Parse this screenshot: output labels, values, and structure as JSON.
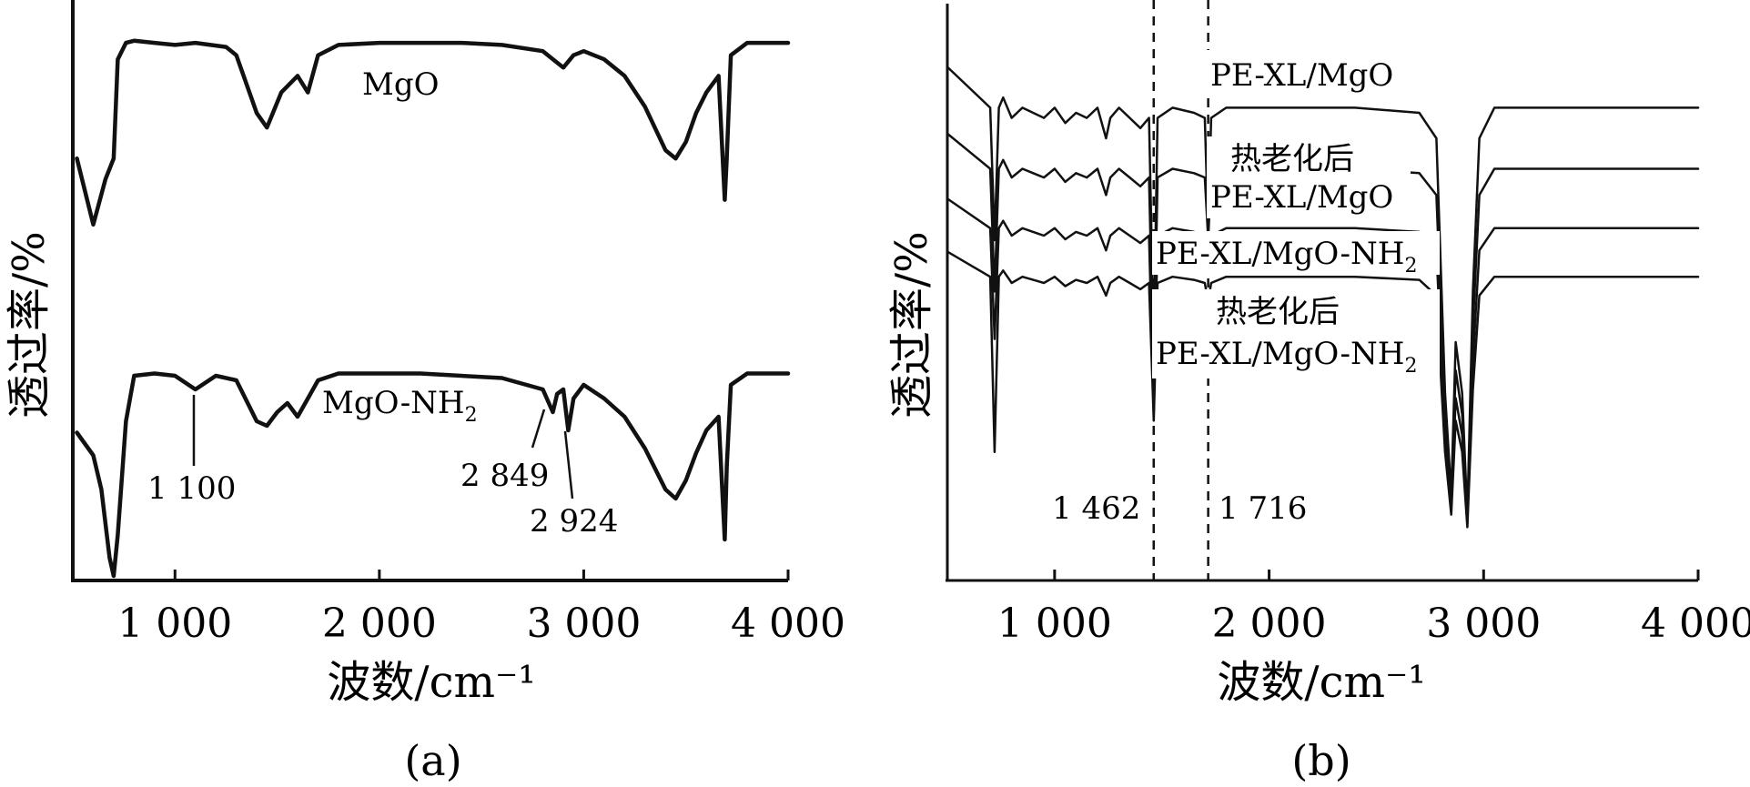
{
  "chart_data": [
    {
      "panel": "(a)",
      "type": "line",
      "xlabel": "波数/cm⁻¹",
      "ylabel": "透过率/%",
      "xlim": [
        500,
        4000
      ],
      "xticks": [
        1000,
        2000,
        3000,
        4000
      ],
      "xtick_labels": [
        "1 000",
        "2 000",
        "3 000",
        "4 000"
      ],
      "y_scale": "arbitrary (offset transmittance)",
      "grid": false,
      "series": [
        {
          "name": "MgO",
          "label_sub": "",
          "x": [
            520,
            600,
            660,
            700,
            720,
            760,
            800,
            900,
            1000,
            1100,
            1250,
            1300,
            1400,
            1450,
            1520,
            1600,
            1650,
            1700,
            1800,
            2000,
            2200,
            2400,
            2600,
            2800,
            2850,
            2900,
            2950,
            3000,
            3100,
            3200,
            3300,
            3400,
            3450,
            3500,
            3550,
            3600,
            3660,
            3690,
            3700,
            3720,
            3800,
            3900,
            4000
          ],
          "y": [
            40,
            8,
            30,
            40,
            88,
            96,
            97,
            96,
            95,
            96,
            94,
            90,
            62,
            55,
            72,
            80,
            72,
            90,
            95,
            96,
            96,
            96,
            95,
            92,
            88,
            84,
            90,
            92,
            88,
            80,
            65,
            44,
            40,
            48,
            62,
            72,
            80,
            20,
            40,
            90,
            96,
            96,
            96
          ]
        },
        {
          "name": "MgO-NH",
          "label_sub": "2",
          "x": [
            520,
            600,
            640,
            680,
            700,
            720,
            760,
            800,
            900,
            1000,
            1100,
            1200,
            1300,
            1400,
            1450,
            1500,
            1550,
            1600,
            1650,
            1700,
            1800,
            2000,
            2200,
            2400,
            2600,
            2800,
            2849,
            2870,
            2900,
            2924,
            2950,
            3000,
            3100,
            3200,
            3300,
            3400,
            3450,
            3500,
            3550,
            3600,
            3660,
            3690,
            3700,
            3720,
            3800,
            3900,
            4000
          ],
          "y": [
            65,
            55,
            40,
            10,
            2,
            20,
            70,
            90,
            91,
            90,
            84,
            90,
            88,
            70,
            68,
            74,
            78,
            72,
            80,
            88,
            91,
            91,
            91,
            90,
            89,
            84,
            74,
            82,
            84,
            66,
            80,
            86,
            80,
            72,
            58,
            40,
            36,
            44,
            56,
            66,
            72,
            18,
            50,
            86,
            91,
            91,
            91
          ]
        }
      ],
      "annotations": [
        {
          "text": "1 100",
          "x": 1100
        },
        {
          "text": "2 849",
          "x": 2849
        },
        {
          "text": "2 924",
          "x": 2924
        }
      ]
    },
    {
      "panel": "(b)",
      "type": "line",
      "xlabel": "波数/cm⁻¹",
      "ylabel": "透过率/%",
      "xlim": [
        500,
        4000
      ],
      "xticks": [
        1000,
        2000,
        3000,
        4000
      ],
      "xtick_labels": [
        "1 000",
        "2 000",
        "3 000",
        "4 000"
      ],
      "y_scale": "arbitrary (offset transmittance)",
      "grid": false,
      "reference_lines": [
        {
          "x": 1462,
          "label": "1 462",
          "style": "dashed"
        },
        {
          "x": 1716,
          "label": "1 716",
          "style": "dashed"
        }
      ],
      "series": [
        {
          "name_line1": "",
          "name_line2": "PE-XL/MgO",
          "label_sub": "",
          "x": [
            500,
            600,
            700,
            720,
            740,
            760,
            800,
            850,
            900,
            950,
            1000,
            1050,
            1100,
            1150,
            1200,
            1240,
            1260,
            1300,
            1350,
            1400,
            1440,
            1462,
            1480,
            1550,
            1650,
            1700,
            1716,
            1730,
            1800,
            2000,
            2400,
            2700,
            2780,
            2820,
            2849,
            2870,
            2900,
            2924,
            2950,
            2980,
            3050,
            3200,
            3500,
            4000
          ],
          "y": [
            94,
            90,
            86,
            60,
            86,
            88,
            84,
            86,
            85,
            84,
            86,
            83,
            85,
            84,
            86,
            80,
            84,
            86,
            84,
            82,
            84,
            40,
            84,
            86,
            85,
            84,
            62,
            84,
            86,
            86,
            86,
            85,
            80,
            30,
            10,
            40,
            30,
            6,
            50,
            80,
            86,
            86,
            86,
            86
          ]
        },
        {
          "name_line1": "热老化后",
          "name_line2": "PE-XL/MgO",
          "label_sub": "",
          "x": [
            500,
            600,
            700,
            720,
            740,
            760,
            800,
            850,
            900,
            950,
            1000,
            1050,
            1100,
            1150,
            1200,
            1240,
            1260,
            1300,
            1350,
            1400,
            1440,
            1462,
            1480,
            1550,
            1650,
            1700,
            1716,
            1730,
            1800,
            2000,
            2400,
            2700,
            2780,
            2820,
            2849,
            2870,
            2900,
            2924,
            2950,
            2980,
            3050,
            3200,
            3500,
            4000
          ],
          "y": [
            94,
            90,
            86,
            58,
            86,
            88,
            84,
            86,
            85,
            84,
            86,
            83,
            85,
            84,
            86,
            80,
            84,
            86,
            84,
            82,
            84,
            38,
            84,
            86,
            85,
            84,
            70,
            84,
            86,
            86,
            86,
            85,
            80,
            30,
            10,
            40,
            30,
            6,
            50,
            80,
            86,
            86,
            86,
            86
          ]
        },
        {
          "name_line1": "",
          "name_line2": "PE-XL/MgO-NH",
          "label_sub": "2",
          "x": [
            500,
            600,
            700,
            720,
            740,
            760,
            800,
            850,
            900,
            950,
            1000,
            1050,
            1100,
            1150,
            1200,
            1240,
            1260,
            1300,
            1350,
            1400,
            1440,
            1462,
            1480,
            1550,
            1650,
            1700,
            1716,
            1730,
            1800,
            2000,
            2400,
            2700,
            2780,
            2820,
            2849,
            2870,
            2900,
            2924,
            2950,
            2980,
            3050,
            3200,
            3500,
            4000
          ],
          "y": [
            94,
            90,
            86,
            56,
            86,
            88,
            84,
            86,
            85,
            84,
            86,
            83,
            85,
            84,
            86,
            80,
            84,
            86,
            84,
            82,
            84,
            36,
            84,
            86,
            85,
            84,
            80,
            84,
            86,
            86,
            86,
            85,
            80,
            30,
            10,
            40,
            30,
            6,
            50,
            80,
            86,
            86,
            86,
            86
          ]
        },
        {
          "name_line1": "热老化后",
          "name_line2": "PE-XL/MgO-NH",
          "label_sub": "2",
          "x": [
            500,
            600,
            700,
            720,
            740,
            760,
            800,
            850,
            900,
            950,
            1000,
            1050,
            1100,
            1150,
            1200,
            1240,
            1260,
            1300,
            1350,
            1400,
            1440,
            1462,
            1480,
            1550,
            1650,
            1700,
            1716,
            1730,
            1800,
            2000,
            2400,
            2700,
            2780,
            2820,
            2849,
            2870,
            2900,
            2924,
            2950,
            2980,
            3050,
            3200,
            3500,
            4000
          ],
          "y": [
            94,
            90,
            86,
            30,
            86,
            88,
            84,
            86,
            85,
            84,
            86,
            83,
            85,
            84,
            86,
            80,
            84,
            86,
            84,
            82,
            84,
            40,
            84,
            86,
            85,
            84,
            78,
            84,
            86,
            86,
            86,
            85,
            80,
            30,
            10,
            40,
            30,
            6,
            50,
            80,
            86,
            86,
            86,
            86
          ]
        }
      ]
    }
  ]
}
